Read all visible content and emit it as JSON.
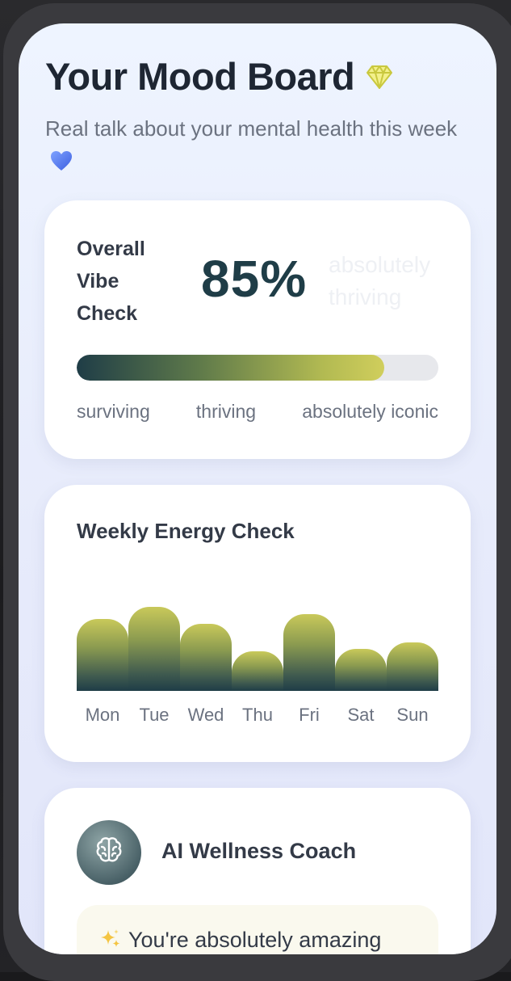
{
  "header": {
    "title": "Your Mood Board",
    "title_icon": "gem-icon",
    "subtitle": "Real talk about your mental health this week",
    "subtitle_icon": "blue-heart-icon"
  },
  "vibe_check": {
    "label": "Overall Vibe Check",
    "value": "85%",
    "progress": 0.85,
    "status": "absolutely thriving",
    "scale": [
      "surviving",
      "thriving",
      "absolutely iconic"
    ]
  },
  "energy": {
    "title": "Weekly Energy Check",
    "days": [
      "Mon",
      "Tue",
      "Wed",
      "Thu",
      "Fri",
      "Sat",
      "Sun"
    ],
    "levels": [
      0.77,
      0.9,
      0.72,
      0.43,
      0.83,
      0.45,
      0.52
    ]
  },
  "coach": {
    "title": "AI Wellness Coach",
    "avatar_icon": "brain-icon",
    "message_icon": "sparkles-icon",
    "message": "You're absolutely amazing"
  },
  "colors": {
    "accent_dark": "#1f3d47",
    "accent_light": "#d0ce5c"
  }
}
